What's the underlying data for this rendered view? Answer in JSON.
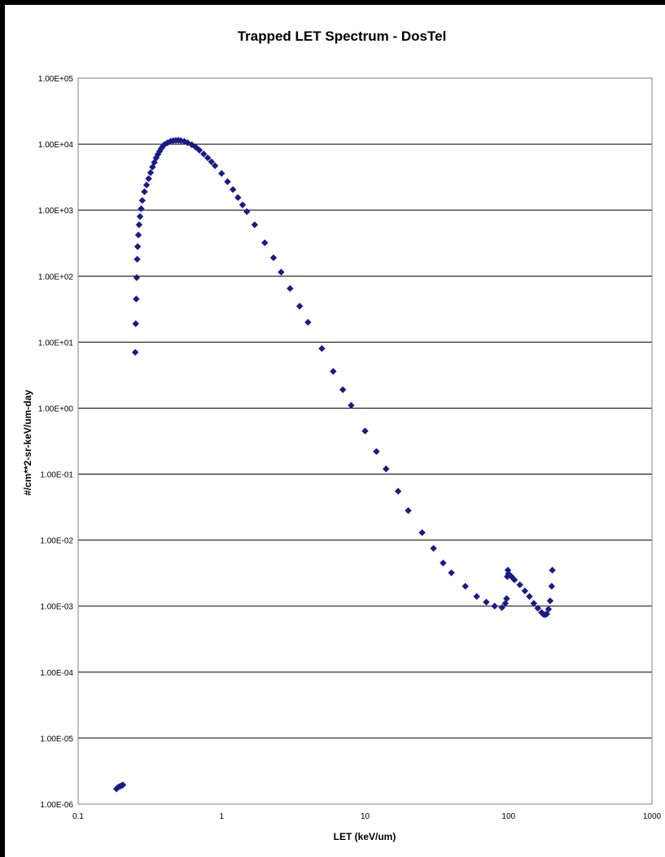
{
  "chart_data": {
    "type": "scatter",
    "title": "Trapped LET Spectrum - DosTel",
    "xlabel": "LET (keV/um)",
    "ylabel": "#/cm**2-sr-keV/um-day",
    "x_scale": "log",
    "y_scale": "log",
    "xlim": [
      0.1,
      1000
    ],
    "ylim": [
      1e-06,
      100000
    ],
    "grid": "horizontal major gridlines",
    "legend": "none",
    "x_tick_labels": [
      "0.1",
      "1",
      "10",
      "100",
      "1000"
    ],
    "y_tick_labels": [
      "1.00E+05",
      "1.00E+04",
      "1.00E+03",
      "1.00E+02",
      "1.00E+01",
      "1.00E+00",
      "1.00E-01",
      "1.00E-02",
      "1.00E-03",
      "1.00E-04",
      "1.00E-05",
      "1.00E-06"
    ],
    "marker_color": "#1a1a8c",
    "series": [
      {
        "points": [
          [
            0.185,
            1.7e-06
          ],
          [
            0.19,
            1.8e-06
          ],
          [
            0.195,
            1.85e-06
          ],
          [
            0.2,
            1.9e-06
          ],
          [
            0.205,
            1.95e-06
          ],
          [
            0.25,
            7
          ],
          [
            0.252,
            19
          ],
          [
            0.254,
            45
          ],
          [
            0.256,
            95
          ],
          [
            0.258,
            180
          ],
          [
            0.26,
            280
          ],
          [
            0.263,
            420
          ],
          [
            0.266,
            600
          ],
          [
            0.27,
            800
          ],
          [
            0.275,
            1050
          ],
          [
            0.28,
            1400
          ],
          [
            0.29,
            1900
          ],
          [
            0.3,
            2400
          ],
          [
            0.31,
            3000
          ],
          [
            0.32,
            3700
          ],
          [
            0.33,
            4500
          ],
          [
            0.34,
            5300
          ],
          [
            0.35,
            6200
          ],
          [
            0.36,
            7000
          ],
          [
            0.37,
            7800
          ],
          [
            0.38,
            8600
          ],
          [
            0.39,
            9300
          ],
          [
            0.4,
            9900
          ],
          [
            0.42,
            10500
          ],
          [
            0.44,
            11000
          ],
          [
            0.46,
            11300
          ],
          [
            0.48,
            11400
          ],
          [
            0.5,
            11400
          ],
          [
            0.52,
            11300
          ],
          [
            0.55,
            11000
          ],
          [
            0.58,
            10500
          ],
          [
            0.62,
            9800
          ],
          [
            0.66,
            9000
          ],
          [
            0.7,
            8100
          ],
          [
            0.75,
            7100
          ],
          [
            0.8,
            6200
          ],
          [
            0.85,
            5400
          ],
          [
            0.9,
            4700
          ],
          [
            1.0,
            3600
          ],
          [
            1.1,
            2700
          ],
          [
            1.2,
            2050
          ],
          [
            1.3,
            1550
          ],
          [
            1.4,
            1200
          ],
          [
            1.5,
            950
          ],
          [
            1.7,
            600
          ],
          [
            2.0,
            320
          ],
          [
            2.3,
            190
          ],
          [
            2.6,
            115
          ],
          [
            3.0,
            65
          ],
          [
            3.5,
            35
          ],
          [
            4.0,
            20
          ],
          [
            5.0,
            8
          ],
          [
            6.0,
            3.6
          ],
          [
            7.0,
            1.9
          ],
          [
            8.0,
            1.1
          ],
          [
            10,
            0.45
          ],
          [
            12,
            0.22
          ],
          [
            14,
            0.12
          ],
          [
            17,
            0.055
          ],
          [
            20,
            0.028
          ],
          [
            25,
            0.013
          ],
          [
            30,
            0.0075
          ],
          [
            35,
            0.0045
          ],
          [
            40,
            0.0032
          ],
          [
            50,
            0.002
          ],
          [
            60,
            0.0014
          ],
          [
            70,
            0.00115
          ],
          [
            80,
            0.001
          ],
          [
            90,
            0.00095
          ],
          [
            95,
            0.0011
          ],
          [
            97,
            0.0013
          ],
          [
            98,
            0.0028
          ],
          [
            99,
            0.0035
          ],
          [
            100,
            0.0031
          ],
          [
            105,
            0.0028
          ],
          [
            110,
            0.0025
          ],
          [
            120,
            0.0021
          ],
          [
            130,
            0.0017
          ],
          [
            140,
            0.0014
          ],
          [
            150,
            0.0011
          ],
          [
            160,
            0.00093
          ],
          [
            170,
            0.0008
          ],
          [
            175,
            0.00075
          ],
          [
            180,
            0.00074
          ],
          [
            185,
            0.00076
          ],
          [
            190,
            0.0009
          ],
          [
            195,
            0.0012
          ],
          [
            200,
            0.002
          ],
          [
            202,
            0.0035
          ]
        ]
      }
    ]
  }
}
